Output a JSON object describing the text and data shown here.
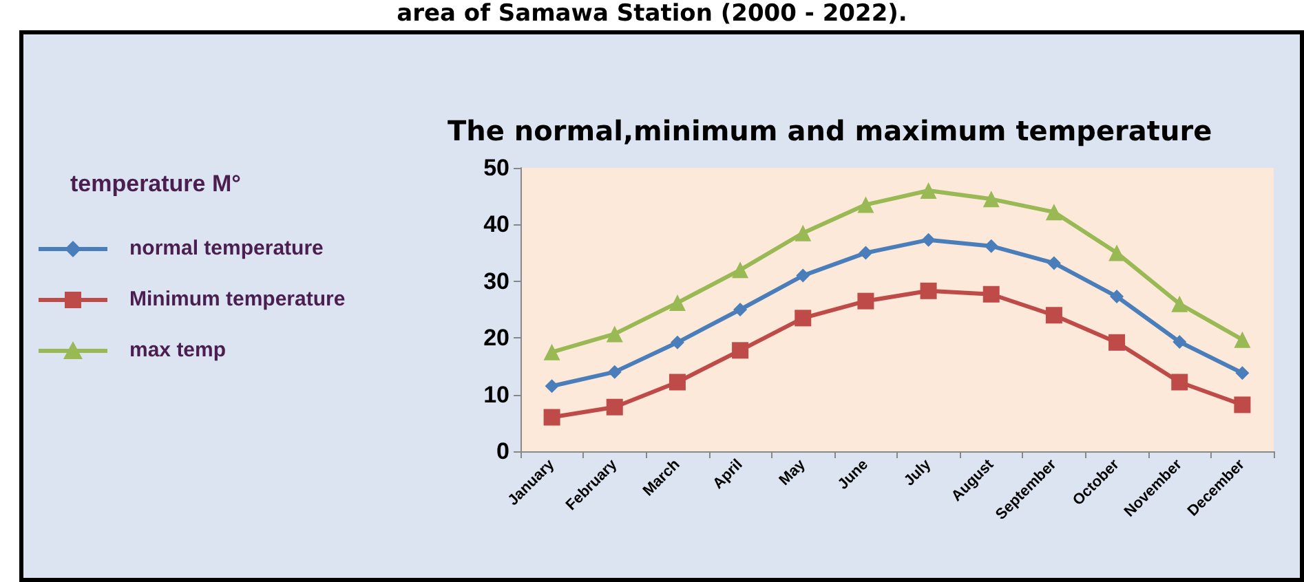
{
  "chart_data": {
    "type": "line",
    "title": "The normal,minimum and maximum temperature",
    "annotations": [
      "area of Samawa Station (2000 - 2022)."
    ],
    "legend_title": "temperature M°",
    "categories": [
      "January",
      "February",
      "March",
      "April",
      "May",
      "June",
      "July",
      "August",
      "September",
      "October",
      "November",
      "December"
    ],
    "series": [
      {
        "name": "normal temperature",
        "color": "#4a7ebb",
        "marker": "diamond",
        "values": [
          11.5,
          14,
          19.2,
          25,
          31,
          35,
          37.3,
          36.2,
          33.2,
          27.3,
          19.3,
          13.8
        ]
      },
      {
        "name": "Minimum temperature",
        "color": "#be4b48",
        "marker": "square",
        "values": [
          6,
          7.8,
          12.2,
          17.8,
          23.5,
          26.5,
          28.3,
          27.7,
          24,
          19.2,
          12.2,
          8.2
        ]
      },
      {
        "name": "max temp",
        "color": "#98b954",
        "marker": "triangle",
        "values": [
          17.5,
          20.7,
          26.2,
          32,
          38.5,
          43.5,
          46,
          44.5,
          42.2,
          35,
          26,
          19.7
        ]
      }
    ],
    "ylim": [
      0,
      50
    ],
    "yticks": [
      0,
      10,
      20,
      30,
      40,
      50
    ],
    "grid": false,
    "legend": "left",
    "line_style": "solid"
  }
}
